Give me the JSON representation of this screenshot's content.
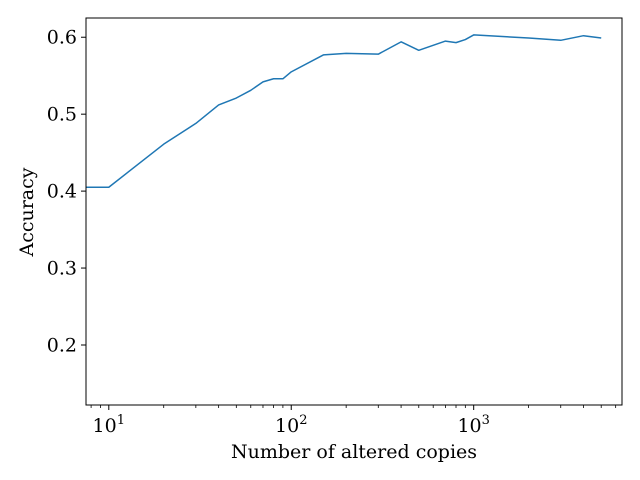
{
  "chart_data": {
    "type": "line",
    "xlabel": "Number of altered copies",
    "ylabel": "Accuracy",
    "x_scale": "log",
    "xlim": [
      7.5,
      6500
    ],
    "ylim": [
      0.122,
      0.625
    ],
    "x_ticks": [
      {
        "value": 10,
        "base": "10",
        "exp": "1"
      },
      {
        "value": 100,
        "base": "10",
        "exp": "2"
      },
      {
        "value": 1000,
        "base": "10",
        "exp": "3"
      }
    ],
    "y_ticks": [
      {
        "value": 0.2,
        "label": "0.2"
      },
      {
        "value": 0.3,
        "label": "0.3"
      },
      {
        "value": 0.4,
        "label": "0.4"
      },
      {
        "value": 0.5,
        "label": "0.5"
      },
      {
        "value": 0.6,
        "label": "0.6"
      }
    ],
    "grid": false,
    "series": [
      {
        "color": "#1f77b4",
        "x": [
          1,
          10,
          20,
          30,
          40,
          50,
          60,
          70,
          80,
          90,
          100,
          150,
          200,
          300,
          400,
          500,
          700,
          800,
          900,
          1000,
          2000,
          3000,
          4000,
          5000
        ],
        "y": [
          0.405,
          0.405,
          0.461,
          0.488,
          0.512,
          0.521,
          0.531,
          0.542,
          0.546,
          0.546,
          0.555,
          0.577,
          0.579,
          0.578,
          0.594,
          0.583,
          0.595,
          0.593,
          0.597,
          0.603,
          0.599,
          0.596,
          0.602,
          0.599
        ]
      }
    ]
  }
}
